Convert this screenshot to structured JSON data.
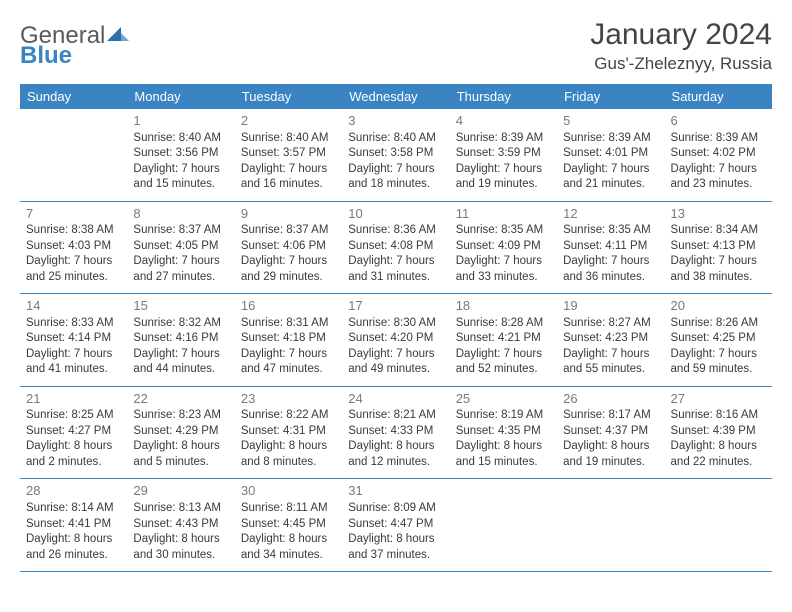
{
  "brand": {
    "word1": "General",
    "word2": "Blue"
  },
  "title": "January 2024",
  "location": "Gus'-Zheleznyy, Russia",
  "colors": {
    "header_bg": "#3b84c4",
    "header_text": "#ffffff",
    "border": "#3b84c4",
    "daynum": "#7a7a7a",
    "body_text": "#3a3a3a",
    "logo_gray": "#5a5a5a",
    "logo_blue": "#3b84c4"
  },
  "weekdays": [
    "Sunday",
    "Monday",
    "Tuesday",
    "Wednesday",
    "Thursday",
    "Friday",
    "Saturday"
  ],
  "weeks": [
    [
      {
        "n": "",
        "sr": "",
        "ss": "",
        "dl1": "",
        "dl2": ""
      },
      {
        "n": "1",
        "sr": "Sunrise: 8:40 AM",
        "ss": "Sunset: 3:56 PM",
        "dl1": "Daylight: 7 hours",
        "dl2": "and 15 minutes."
      },
      {
        "n": "2",
        "sr": "Sunrise: 8:40 AM",
        "ss": "Sunset: 3:57 PM",
        "dl1": "Daylight: 7 hours",
        "dl2": "and 16 minutes."
      },
      {
        "n": "3",
        "sr": "Sunrise: 8:40 AM",
        "ss": "Sunset: 3:58 PM",
        "dl1": "Daylight: 7 hours",
        "dl2": "and 18 minutes."
      },
      {
        "n": "4",
        "sr": "Sunrise: 8:39 AM",
        "ss": "Sunset: 3:59 PM",
        "dl1": "Daylight: 7 hours",
        "dl2": "and 19 minutes."
      },
      {
        "n": "5",
        "sr": "Sunrise: 8:39 AM",
        "ss": "Sunset: 4:01 PM",
        "dl1": "Daylight: 7 hours",
        "dl2": "and 21 minutes."
      },
      {
        "n": "6",
        "sr": "Sunrise: 8:39 AM",
        "ss": "Sunset: 4:02 PM",
        "dl1": "Daylight: 7 hours",
        "dl2": "and 23 minutes."
      }
    ],
    [
      {
        "n": "7",
        "sr": "Sunrise: 8:38 AM",
        "ss": "Sunset: 4:03 PM",
        "dl1": "Daylight: 7 hours",
        "dl2": "and 25 minutes."
      },
      {
        "n": "8",
        "sr": "Sunrise: 8:37 AM",
        "ss": "Sunset: 4:05 PM",
        "dl1": "Daylight: 7 hours",
        "dl2": "and 27 minutes."
      },
      {
        "n": "9",
        "sr": "Sunrise: 8:37 AM",
        "ss": "Sunset: 4:06 PM",
        "dl1": "Daylight: 7 hours",
        "dl2": "and 29 minutes."
      },
      {
        "n": "10",
        "sr": "Sunrise: 8:36 AM",
        "ss": "Sunset: 4:08 PM",
        "dl1": "Daylight: 7 hours",
        "dl2": "and 31 minutes."
      },
      {
        "n": "11",
        "sr": "Sunrise: 8:35 AM",
        "ss": "Sunset: 4:09 PM",
        "dl1": "Daylight: 7 hours",
        "dl2": "and 33 minutes."
      },
      {
        "n": "12",
        "sr": "Sunrise: 8:35 AM",
        "ss": "Sunset: 4:11 PM",
        "dl1": "Daylight: 7 hours",
        "dl2": "and 36 minutes."
      },
      {
        "n": "13",
        "sr": "Sunrise: 8:34 AM",
        "ss": "Sunset: 4:13 PM",
        "dl1": "Daylight: 7 hours",
        "dl2": "and 38 minutes."
      }
    ],
    [
      {
        "n": "14",
        "sr": "Sunrise: 8:33 AM",
        "ss": "Sunset: 4:14 PM",
        "dl1": "Daylight: 7 hours",
        "dl2": "and 41 minutes."
      },
      {
        "n": "15",
        "sr": "Sunrise: 8:32 AM",
        "ss": "Sunset: 4:16 PM",
        "dl1": "Daylight: 7 hours",
        "dl2": "and 44 minutes."
      },
      {
        "n": "16",
        "sr": "Sunrise: 8:31 AM",
        "ss": "Sunset: 4:18 PM",
        "dl1": "Daylight: 7 hours",
        "dl2": "and 47 minutes."
      },
      {
        "n": "17",
        "sr": "Sunrise: 8:30 AM",
        "ss": "Sunset: 4:20 PM",
        "dl1": "Daylight: 7 hours",
        "dl2": "and 49 minutes."
      },
      {
        "n": "18",
        "sr": "Sunrise: 8:28 AM",
        "ss": "Sunset: 4:21 PM",
        "dl1": "Daylight: 7 hours",
        "dl2": "and 52 minutes."
      },
      {
        "n": "19",
        "sr": "Sunrise: 8:27 AM",
        "ss": "Sunset: 4:23 PM",
        "dl1": "Daylight: 7 hours",
        "dl2": "and 55 minutes."
      },
      {
        "n": "20",
        "sr": "Sunrise: 8:26 AM",
        "ss": "Sunset: 4:25 PM",
        "dl1": "Daylight: 7 hours",
        "dl2": "and 59 minutes."
      }
    ],
    [
      {
        "n": "21",
        "sr": "Sunrise: 8:25 AM",
        "ss": "Sunset: 4:27 PM",
        "dl1": "Daylight: 8 hours",
        "dl2": "and 2 minutes."
      },
      {
        "n": "22",
        "sr": "Sunrise: 8:23 AM",
        "ss": "Sunset: 4:29 PM",
        "dl1": "Daylight: 8 hours",
        "dl2": "and 5 minutes."
      },
      {
        "n": "23",
        "sr": "Sunrise: 8:22 AM",
        "ss": "Sunset: 4:31 PM",
        "dl1": "Daylight: 8 hours",
        "dl2": "and 8 minutes."
      },
      {
        "n": "24",
        "sr": "Sunrise: 8:21 AM",
        "ss": "Sunset: 4:33 PM",
        "dl1": "Daylight: 8 hours",
        "dl2": "and 12 minutes."
      },
      {
        "n": "25",
        "sr": "Sunrise: 8:19 AM",
        "ss": "Sunset: 4:35 PM",
        "dl1": "Daylight: 8 hours",
        "dl2": "and 15 minutes."
      },
      {
        "n": "26",
        "sr": "Sunrise: 8:17 AM",
        "ss": "Sunset: 4:37 PM",
        "dl1": "Daylight: 8 hours",
        "dl2": "and 19 minutes."
      },
      {
        "n": "27",
        "sr": "Sunrise: 8:16 AM",
        "ss": "Sunset: 4:39 PM",
        "dl1": "Daylight: 8 hours",
        "dl2": "and 22 minutes."
      }
    ],
    [
      {
        "n": "28",
        "sr": "Sunrise: 8:14 AM",
        "ss": "Sunset: 4:41 PM",
        "dl1": "Daylight: 8 hours",
        "dl2": "and 26 minutes."
      },
      {
        "n": "29",
        "sr": "Sunrise: 8:13 AM",
        "ss": "Sunset: 4:43 PM",
        "dl1": "Daylight: 8 hours",
        "dl2": "and 30 minutes."
      },
      {
        "n": "30",
        "sr": "Sunrise: 8:11 AM",
        "ss": "Sunset: 4:45 PM",
        "dl1": "Daylight: 8 hours",
        "dl2": "and 34 minutes."
      },
      {
        "n": "31",
        "sr": "Sunrise: 8:09 AM",
        "ss": "Sunset: 4:47 PM",
        "dl1": "Daylight: 8 hours",
        "dl2": "and 37 minutes."
      },
      {
        "n": "",
        "sr": "",
        "ss": "",
        "dl1": "",
        "dl2": ""
      },
      {
        "n": "",
        "sr": "",
        "ss": "",
        "dl1": "",
        "dl2": ""
      },
      {
        "n": "",
        "sr": "",
        "ss": "",
        "dl1": "",
        "dl2": ""
      }
    ]
  ]
}
